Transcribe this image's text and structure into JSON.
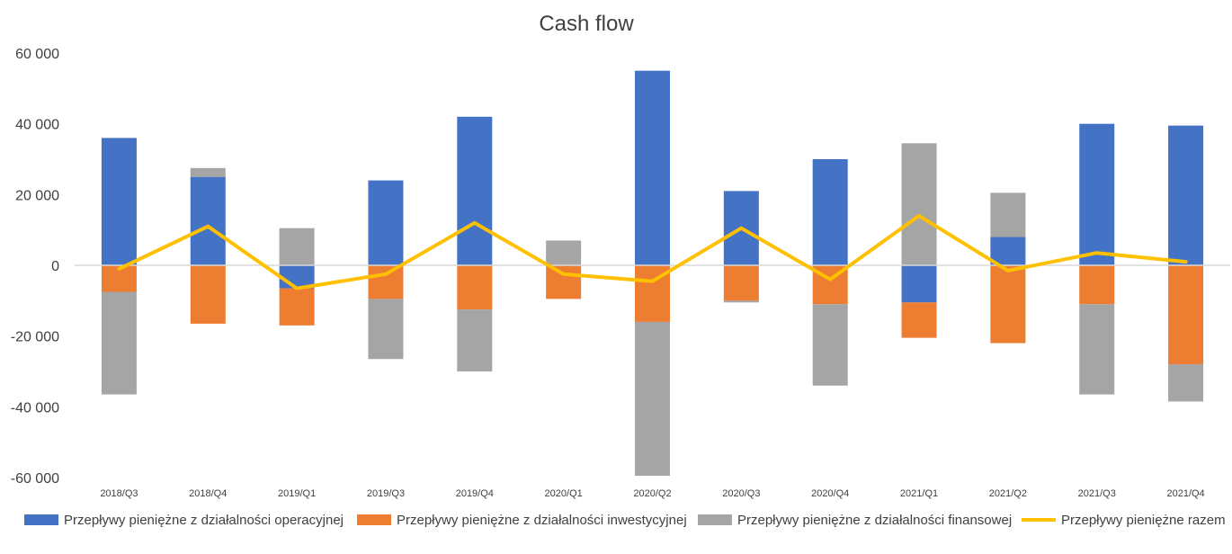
{
  "chart_data": {
    "type": "bar",
    "stacked": true,
    "title": "Cash flow",
    "xlabel": "",
    "ylabel": "",
    "ylim": [
      -60000,
      60000
    ],
    "yticks": [
      60000,
      40000,
      20000,
      0,
      -20000,
      -40000,
      -60000
    ],
    "ytick_labels": [
      "60 000",
      "40 000",
      "20 000",
      "0",
      "-20 000",
      "-40 000",
      "-60 000"
    ],
    "categories": [
      "2018/Q3",
      "2018/Q4",
      "2019/Q1",
      "2019/Q3",
      "2019/Q4",
      "2020/Q1",
      "2020/Q2",
      "2020/Q3",
      "2020/Q4",
      "2021/Q1",
      "2021/Q2",
      "2021/Q3",
      "2021/Q4"
    ],
    "series": [
      {
        "name": "Przepływy pieniężne z działalności operacyjnej",
        "kind": "bar",
        "color": "#4472C4",
        "values": [
          36000,
          25000,
          -6500,
          24000,
          42000,
          0,
          55000,
          21000,
          30000,
          -10500,
          8000,
          40000,
          39500
        ]
      },
      {
        "name": "Przepływy pieniężne z działalności inwestycyjnej",
        "kind": "bar",
        "color": "#ED7D31",
        "values": [
          -7500,
          -16500,
          -10500,
          -9500,
          -12500,
          -9500,
          -16000,
          -10000,
          -11000,
          -10000,
          -22000,
          -11000,
          -28000
        ]
      },
      {
        "name": "Przepływy pieniężne z działalności finansowej",
        "kind": "bar",
        "color": "#A5A5A5",
        "values": [
          -29000,
          2500,
          10500,
          -17000,
          -17500,
          7000,
          -43500,
          -500,
          -23000,
          34500,
          12500,
          -25500,
          -10500
        ]
      },
      {
        "name": "Przepływy pieniężne razem",
        "kind": "line",
        "color": "#FFC000",
        "values": [
          -1000,
          11000,
          -6500,
          -2500,
          12000,
          -2500,
          -4500,
          10500,
          -4000,
          14000,
          -1500,
          3500,
          1000
        ]
      }
    ],
    "grid": false,
    "legend": "bottom"
  }
}
